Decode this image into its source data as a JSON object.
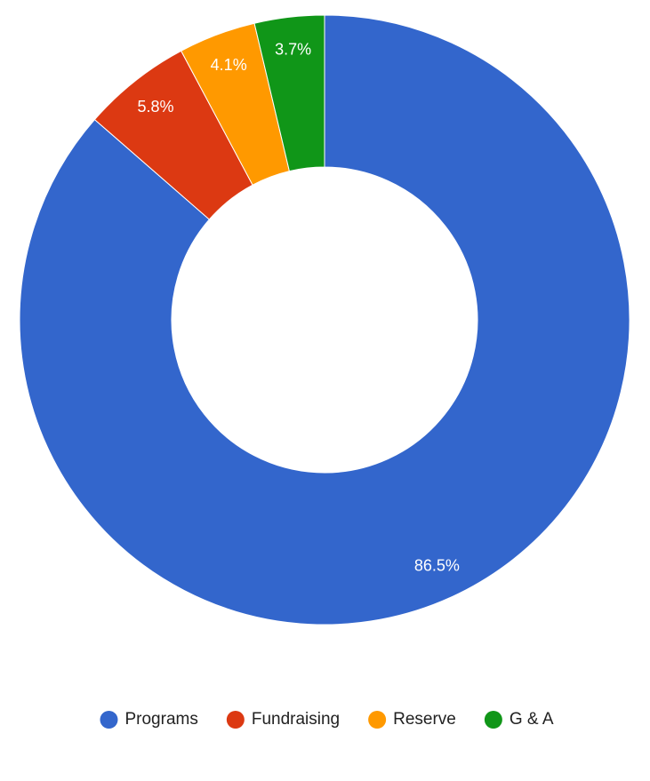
{
  "chart_data": {
    "type": "donut",
    "categories": [
      "Programs",
      "Fundraising",
      "Reserve",
      "G & A"
    ],
    "values": [
      86.5,
      5.8,
      4.1,
      3.7
    ],
    "value_labels": [
      "86.5%",
      "5.8%",
      "4.1%",
      "3.7%"
    ],
    "colors": [
      "#3366cc",
      "#dc3912",
      "#ff9900",
      "#109618"
    ],
    "legend": "bottom"
  }
}
